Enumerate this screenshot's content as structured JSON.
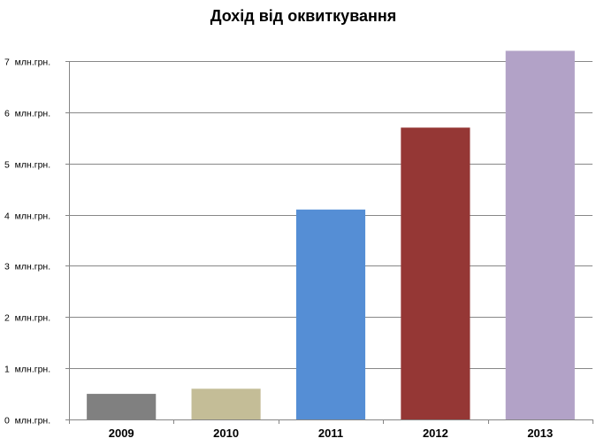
{
  "chart_data": {
    "type": "bar",
    "title": "Дохід від оквиткування",
    "xlabel": "",
    "ylabel": "",
    "categories": [
      "2009",
      "2010",
      "2011",
      "2012",
      "2013"
    ],
    "values": [
      0.5,
      0.6,
      4.1,
      5.7,
      7.2
    ],
    "bar_colors": [
      "#808080",
      "#c4bd97",
      "#558ed5",
      "#953735",
      "#b2a2c7"
    ],
    "ylim": [
      0,
      7
    ],
    "yticks": [
      0,
      1,
      2,
      3,
      4,
      5,
      6,
      7
    ],
    "ytick_labels": [
      "0  млн.грн.",
      "1  млн.грн.",
      "2  млн.грн.",
      "3  млн.грн.",
      "4  млн.грн.",
      "5  млн.грн.",
      "6  млн.грн.",
      "7  млн.грн."
    ],
    "grid": true,
    "legend": "none",
    "gridline_color": "#888888",
    "axis_color": "#868686"
  }
}
